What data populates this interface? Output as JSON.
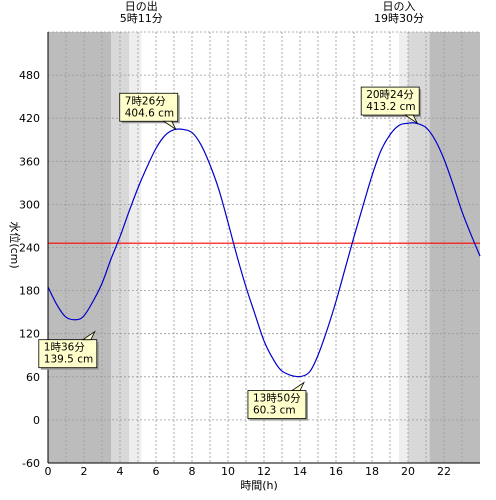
{
  "chart_data": {
    "type": "line",
    "xlabel": "時間(h)",
    "ylabel": "水位(cm)",
    "xlim": [
      0,
      24
    ],
    "ylim": [
      -60,
      540
    ],
    "x_ticks": [
      0,
      2,
      4,
      6,
      8,
      10,
      12,
      14,
      16,
      18,
      20,
      22
    ],
    "y_ticks": [
      -60,
      0,
      60,
      120,
      180,
      240,
      300,
      360,
      420,
      480
    ],
    "reference_line": {
      "y": 246,
      "color": "#ff0000"
    },
    "series": [
      {
        "color": "#0000cc",
        "x": [
          0,
          0.5,
          1,
          1.6,
          2,
          2.5,
          3,
          3.5,
          4,
          4.5,
          5,
          5.5,
          6,
          6.5,
          7,
          7.43,
          8,
          8.5,
          9,
          9.5,
          10,
          10.5,
          11,
          11.5,
          12,
          12.5,
          13,
          13.83,
          14.5,
          15,
          15.5,
          16,
          16.5,
          17,
          17.5,
          18,
          18.5,
          19,
          19.5,
          20,
          20.4,
          21,
          21.5,
          22,
          22.5,
          23,
          23.5,
          24
        ],
        "y": [
          185,
          160,
          143,
          139.5,
          145,
          165,
          190,
          224,
          255,
          290,
          323,
          352,
          378,
          396,
          404,
          404.6,
          400,
          383,
          355,
          320,
          275,
          228,
          185,
          147,
          110,
          85,
          68,
          60.3,
          66,
          90,
          125,
          165,
          210,
          255,
          298,
          340,
          375,
          397,
          410,
          413,
          413.2,
          407,
          390,
          363,
          328,
          290,
          258,
          228
        ]
      }
    ],
    "annotations": [
      {
        "label": "1時36分\n139.5 cm",
        "x": 1.6,
        "y": 139.5
      },
      {
        "label": "7時26分\n404.6 cm",
        "x": 7.43,
        "y": 404.6
      },
      {
        "label": "13時50分\n60.3 cm",
        "x": 13.83,
        "y": 60.3
      },
      {
        "label": "20時24分\n413.2 cm",
        "x": 20.4,
        "y": 413.2
      }
    ],
    "sunrise": {
      "label": "日の出\n5時11分",
      "time": 5.18
    },
    "sunset": {
      "label": "日の入\n19時30分",
      "time": 19.5
    },
    "shading": {
      "night_color": "#bcbcbc",
      "twilight_color": "#d8d8d8",
      "dawn_color": "#eeeeee",
      "bands": [
        {
          "from": 0,
          "to": 3.5,
          "tone": "night"
        },
        {
          "from": 3.5,
          "to": 4.5,
          "tone": "twilight"
        },
        {
          "from": 4.5,
          "to": 5.18,
          "tone": "dawn"
        },
        {
          "from": 19.5,
          "to": 20,
          "tone": "dawn"
        },
        {
          "from": 20,
          "to": 21.2,
          "tone": "twilight"
        },
        {
          "from": 21.2,
          "to": 24,
          "tone": "night"
        }
      ]
    }
  }
}
